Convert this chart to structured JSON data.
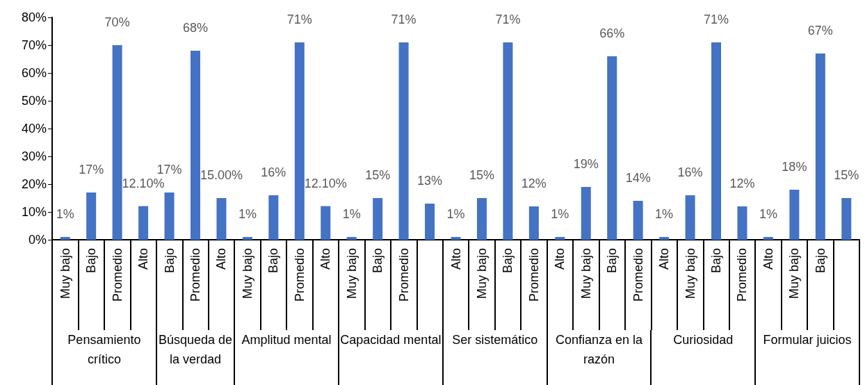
{
  "chart_data": {
    "type": "bar",
    "categories": [
      "Muy bajo",
      "Bajo",
      "Promedio",
      "Alto",
      "Bajo",
      "Promedio",
      "Alto",
      "Muy bajo",
      "Bajo",
      "Promedio",
      "Alto",
      "Muy bajo",
      "Bajo",
      "Promedio",
      null,
      "Alto",
      "Muy bajo",
      "Bajo",
      "Promedio",
      "Alto",
      "Muy bajo",
      "Bajo",
      "Promedio",
      "Alto",
      "Muy bajo",
      "Bajo",
      "Promedio",
      "Alto",
      "Muy bajo",
      "Bajo",
      null
    ],
    "values": [
      1,
      17,
      70,
      12.1,
      17,
      68,
      15,
      1,
      16,
      71,
      12.1,
      1,
      15,
      71,
      13,
      1,
      15,
      71,
      12,
      1,
      19,
      66,
      14,
      1,
      16,
      71,
      12,
      1,
      18,
      67,
      15
    ],
    "value_labels": [
      "1%",
      "17%",
      "70%",
      "12.10%",
      "17%",
      "68%",
      "15.00%",
      "1%",
      "16%",
      "71%",
      "12.10%",
      "1%",
      "15%",
      "71%",
      "13%",
      "1%",
      "15%",
      "71%",
      "12%",
      "1%",
      "19%",
      "66%",
      "14%",
      "1%",
      "16%",
      "71%",
      "12%",
      "1%",
      "18%",
      "67%",
      "15%"
    ],
    "color": "#4472c4",
    "annotations": [
      "Pensamiento crítico",
      "Búsqueda de la verdad",
      "Amplitud mental",
      "Capacidad mental",
      "Ser sistemático",
      "Confianza en la razón",
      "Curiosidad",
      "Formular juicios"
    ],
    "ylim": [
      0,
      80
    ],
    "yticks": [
      {
        "value": 0,
        "label": "0%"
      },
      {
        "value": 10,
        "label": "10%"
      },
      {
        "value": 20,
        "label": "20%"
      },
      {
        "value": 30,
        "label": "30%"
      },
      {
        "value": 40,
        "label": "40%"
      },
      {
        "value": 50,
        "label": "50%"
      },
      {
        "value": 60,
        "label": "60%"
      },
      {
        "value": 70,
        "label": "70%"
      },
      {
        "value": 80,
        "label": "80%"
      }
    ],
    "grid": false
  }
}
